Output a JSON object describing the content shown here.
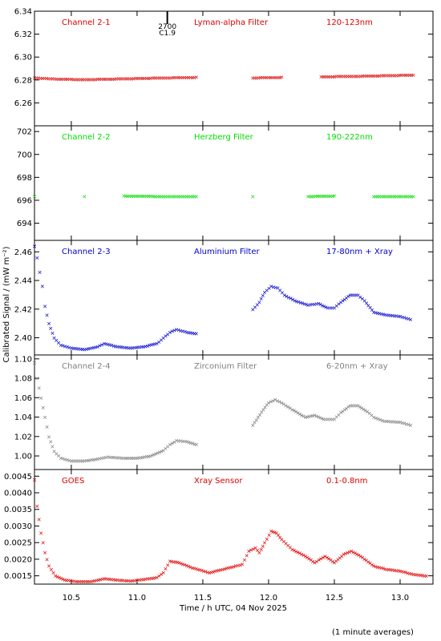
{
  "chart_data": {
    "type": "scatter",
    "shared_x": {
      "label": "Time / h UTC, 04 Nov 2025",
      "lim": [
        10.22,
        13.25
      ],
      "ticks": [
        10.5,
        11.0,
        11.5,
        12.0,
        12.5,
        13.0
      ],
      "tick_labels": [
        "10.5",
        "11.0",
        "11.5",
        "12.0",
        "12.5",
        "13.0"
      ]
    },
    "ylabel": "Calibrated Signal / (mW m⁻²)",
    "footnote": "(1 minute averages)",
    "marker": "✕",
    "panels": [
      {
        "channel": "Channel 2-1",
        "filter": "Lyman-alpha Filter",
        "band": "120-123nm",
        "color": "#dd0000",
        "ylim": [
          6.24,
          6.34
        ],
        "yticks": [
          6.26,
          6.28,
          6.3,
          6.32,
          6.34
        ],
        "ytick_labels": [
          "6.26",
          "6.28",
          "6.30",
          "6.32",
          "6.34"
        ],
        "event": {
          "x": 11.23,
          "label1": "2700",
          "label2": "C1.9"
        },
        "points": [
          [
            10.22,
            6.282
          ],
          [
            10.4,
            6.281
          ],
          [
            10.6,
            6.2805
          ],
          [
            10.8,
            6.281
          ],
          [
            11.0,
            6.2815
          ],
          [
            11.2,
            6.282
          ],
          [
            11.45,
            6.2825
          ],
          [
            11.88,
            6.282
          ],
          [
            12.1,
            6.2825
          ],
          [
            12.4,
            6.283
          ],
          [
            12.7,
            6.2835
          ],
          [
            12.9,
            6.284
          ],
          [
            13.1,
            6.2845
          ]
        ]
      },
      {
        "channel": "Channel 2-2",
        "filter": "Herzberg Filter",
        "band": "190-222nm",
        "color": "#00dd00",
        "ylim": [
          692.5,
          702.5
        ],
        "yticks": [
          694,
          696,
          698,
          700,
          702
        ],
        "ytick_labels": [
          "694",
          "696",
          "698",
          "700",
          "702"
        ],
        "points": [
          [
            10.22,
            696.35
          ],
          [
            10.6,
            696.35
          ],
          [
            10.9,
            696.4
          ],
          [
            11.2,
            696.35
          ],
          [
            11.45,
            696.35
          ],
          [
            11.88,
            696.35
          ],
          [
            12.3,
            696.35
          ],
          [
            12.5,
            696.4
          ],
          [
            12.8,
            696.35
          ],
          [
            13.1,
            696.35
          ]
        ]
      },
      {
        "channel": "Channel 2-3",
        "filter": "Aluminium Filter",
        "band": "17-80nm + Xray",
        "color": "#0000cc",
        "ylim": [
          2.388,
          2.468
        ],
        "yticks": [
          2.4,
          2.42,
          2.44,
          2.46
        ],
        "ytick_labels": [
          "2.40",
          "2.42",
          "2.44",
          "2.46"
        ],
        "points": [
          [
            10.22,
            2.464
          ],
          [
            10.24,
            2.456
          ],
          [
            10.26,
            2.446
          ],
          [
            10.28,
            2.436
          ],
          [
            10.3,
            2.422
          ],
          [
            10.33,
            2.41
          ],
          [
            10.37,
            2.4
          ],
          [
            10.42,
            2.395
          ],
          [
            10.5,
            2.393
          ],
          [
            10.6,
            2.392
          ],
          [
            10.7,
            2.394
          ],
          [
            10.75,
            2.396
          ],
          [
            10.85,
            2.394
          ],
          [
            10.95,
            2.393
          ],
          [
            11.05,
            2.394
          ],
          [
            11.15,
            2.396
          ],
          [
            11.2,
            2.4
          ],
          [
            11.25,
            2.404
          ],
          [
            11.3,
            2.406
          ],
          [
            11.38,
            2.404
          ],
          [
            11.45,
            2.403
          ],
          [
            11.88,
            2.42
          ],
          [
            11.93,
            2.425
          ],
          [
            11.97,
            2.432
          ],
          [
            12.02,
            2.436
          ],
          [
            12.07,
            2.435
          ],
          [
            12.12,
            2.43
          ],
          [
            12.2,
            2.426
          ],
          [
            12.3,
            2.423
          ],
          [
            12.38,
            2.424
          ],
          [
            12.45,
            2.421
          ],
          [
            12.5,
            2.421
          ],
          [
            12.55,
            2.425
          ],
          [
            12.62,
            2.43
          ],
          [
            12.68,
            2.43
          ],
          [
            12.73,
            2.426
          ],
          [
            12.8,
            2.418
          ],
          [
            12.9,
            2.416
          ],
          [
            13.0,
            2.415
          ],
          [
            13.08,
            2.413
          ]
        ]
      },
      {
        "channel": "Channel 2-4",
        "filter": "Zirconium Filter",
        "band": "6-20nm + Xray",
        "color": "#808080",
        "ylim": [
          0.986,
          1.104
        ],
        "yticks": [
          1.0,
          1.02,
          1.04,
          1.06,
          1.08,
          1.1
        ],
        "ytick_labels": [
          "1.00",
          "1.02",
          "1.04",
          "1.06",
          "1.08",
          "1.10"
        ],
        "points": [
          [
            10.22,
            1.096
          ],
          [
            10.24,
            1.08
          ],
          [
            10.27,
            1.06
          ],
          [
            10.3,
            1.04
          ],
          [
            10.33,
            1.02
          ],
          [
            10.37,
            1.005
          ],
          [
            10.42,
            0.998
          ],
          [
            10.5,
            0.995
          ],
          [
            10.6,
            0.995
          ],
          [
            10.7,
            0.997
          ],
          [
            10.78,
            0.999
          ],
          [
            10.9,
            0.998
          ],
          [
            11.0,
            0.998
          ],
          [
            11.1,
            1.0
          ],
          [
            11.2,
            1.006
          ],
          [
            11.25,
            1.012
          ],
          [
            11.3,
            1.016
          ],
          [
            11.38,
            1.015
          ],
          [
            11.45,
            1.012
          ],
          [
            11.88,
            1.032
          ],
          [
            11.92,
            1.04
          ],
          [
            11.96,
            1.048
          ],
          [
            12.0,
            1.055
          ],
          [
            12.05,
            1.058
          ],
          [
            12.1,
            1.055
          ],
          [
            12.18,
            1.048
          ],
          [
            12.28,
            1.04
          ],
          [
            12.35,
            1.042
          ],
          [
            12.42,
            1.038
          ],
          [
            12.5,
            1.038
          ],
          [
            12.55,
            1.045
          ],
          [
            12.62,
            1.052
          ],
          [
            12.68,
            1.052
          ],
          [
            12.75,
            1.046
          ],
          [
            12.8,
            1.04
          ],
          [
            12.88,
            1.036
          ],
          [
            13.0,
            1.035
          ],
          [
            13.08,
            1.032
          ]
        ]
      },
      {
        "channel": "GOES",
        "filter": "Xray Sensor",
        "band": "0.1-0.8nm",
        "color": "#dd0000",
        "ylim": [
          0.00125,
          0.0047
        ],
        "yticks": [
          0.0015,
          0.002,
          0.0025,
          0.003,
          0.0035,
          0.004,
          0.0045
        ],
        "ytick_labels": [
          "0.0015",
          "0.0020",
          "0.0025",
          "0.0030",
          "0.0035",
          "0.0040",
          "0.0045"
        ],
        "points": [
          [
            10.22,
            0.0044
          ],
          [
            10.24,
            0.0036
          ],
          [
            10.27,
            0.0028
          ],
          [
            10.3,
            0.0022
          ],
          [
            10.33,
            0.0018
          ],
          [
            10.38,
            0.0015
          ],
          [
            10.45,
            0.00138
          ],
          [
            10.55,
            0.00133
          ],
          [
            10.65,
            0.00133
          ],
          [
            10.75,
            0.00142
          ],
          [
            10.85,
            0.00138
          ],
          [
            10.95,
            0.00135
          ],
          [
            11.05,
            0.0014
          ],
          [
            11.15,
            0.00145
          ],
          [
            11.2,
            0.0016
          ],
          [
            11.25,
            0.00195
          ],
          [
            11.32,
            0.0019
          ],
          [
            11.42,
            0.00175
          ],
          [
            11.55,
            0.0016
          ],
          [
            11.65,
            0.0017
          ],
          [
            11.75,
            0.0018
          ],
          [
            11.8,
            0.00185
          ],
          [
            11.85,
            0.00225
          ],
          [
            11.9,
            0.00235
          ],
          [
            11.93,
            0.0022
          ],
          [
            11.97,
            0.0025
          ],
          [
            12.02,
            0.00285
          ],
          [
            12.06,
            0.0028
          ],
          [
            12.1,
            0.0026
          ],
          [
            12.18,
            0.0023
          ],
          [
            12.28,
            0.0021
          ],
          [
            12.35,
            0.0019
          ],
          [
            12.43,
            0.0021
          ],
          [
            12.5,
            0.0019
          ],
          [
            12.57,
            0.00215
          ],
          [
            12.63,
            0.00225
          ],
          [
            12.7,
            0.0021
          ],
          [
            12.8,
            0.0018
          ],
          [
            12.9,
            0.0017
          ],
          [
            13.0,
            0.00165
          ],
          [
            13.1,
            0.00155
          ],
          [
            13.2,
            0.0015
          ]
        ]
      }
    ]
  }
}
